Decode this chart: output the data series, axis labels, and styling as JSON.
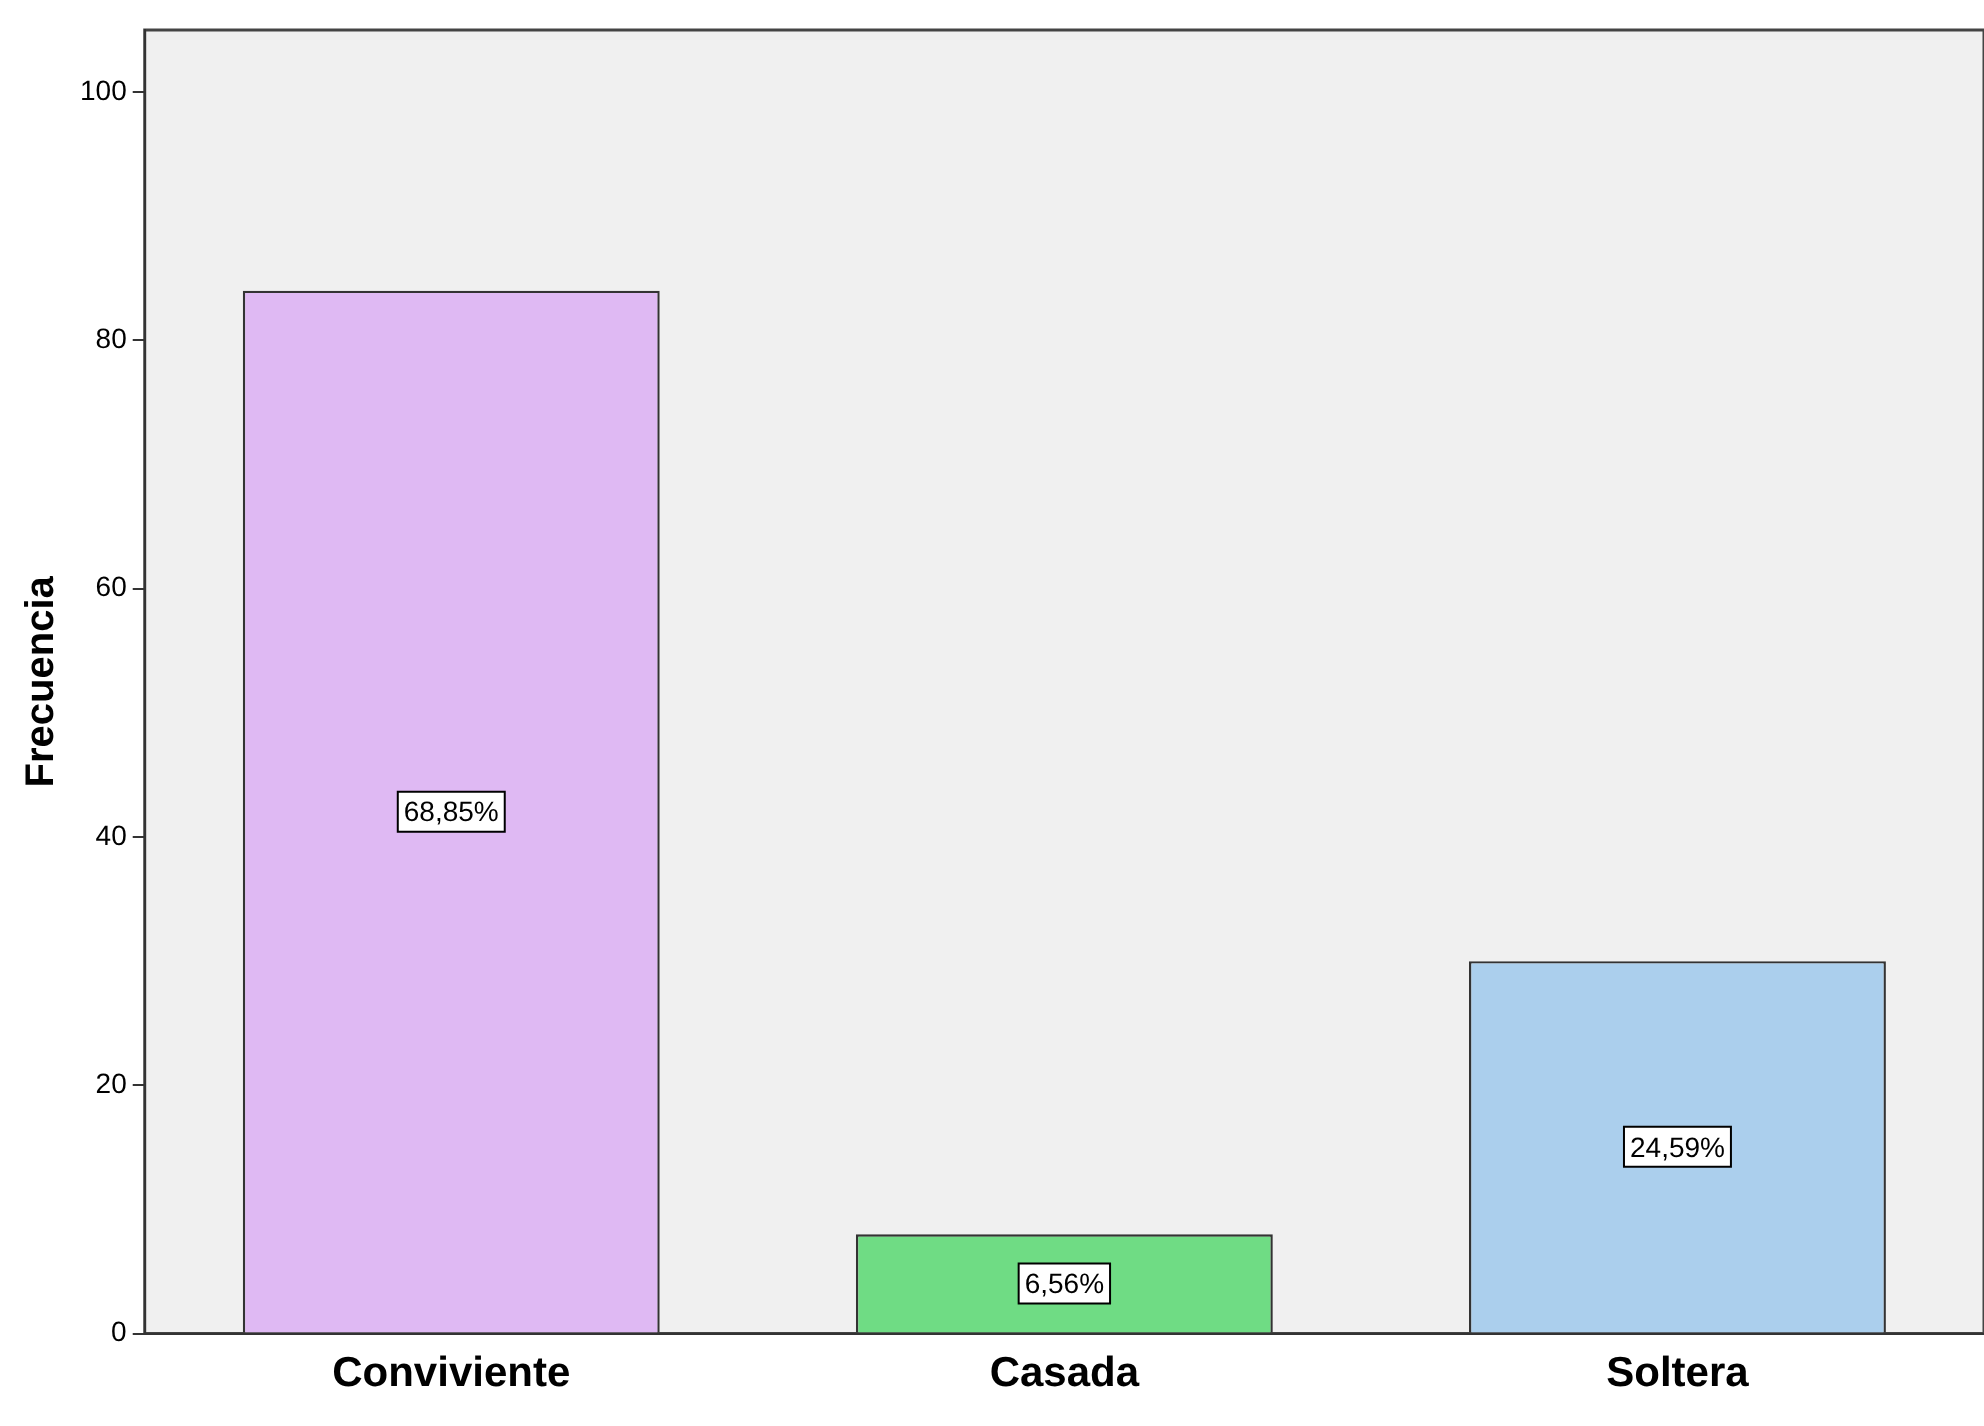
{
  "chart_data": {
    "type": "bar",
    "ylabel": "Frecuencia",
    "categories": [
      "Conviviente",
      "Casada",
      "Soltera"
    ],
    "values": [
      84,
      8,
      30
    ],
    "colors": [
      "#dfb9f3",
      "#6fdc84",
      "#abcfed"
    ],
    "annotations": [
      "68,85%",
      "6,56%",
      "24,59%"
    ],
    "ylim": [
      0,
      105
    ],
    "yticks": [
      0,
      20,
      40,
      60,
      80,
      100
    ],
    "grid": false,
    "legend": false
  }
}
